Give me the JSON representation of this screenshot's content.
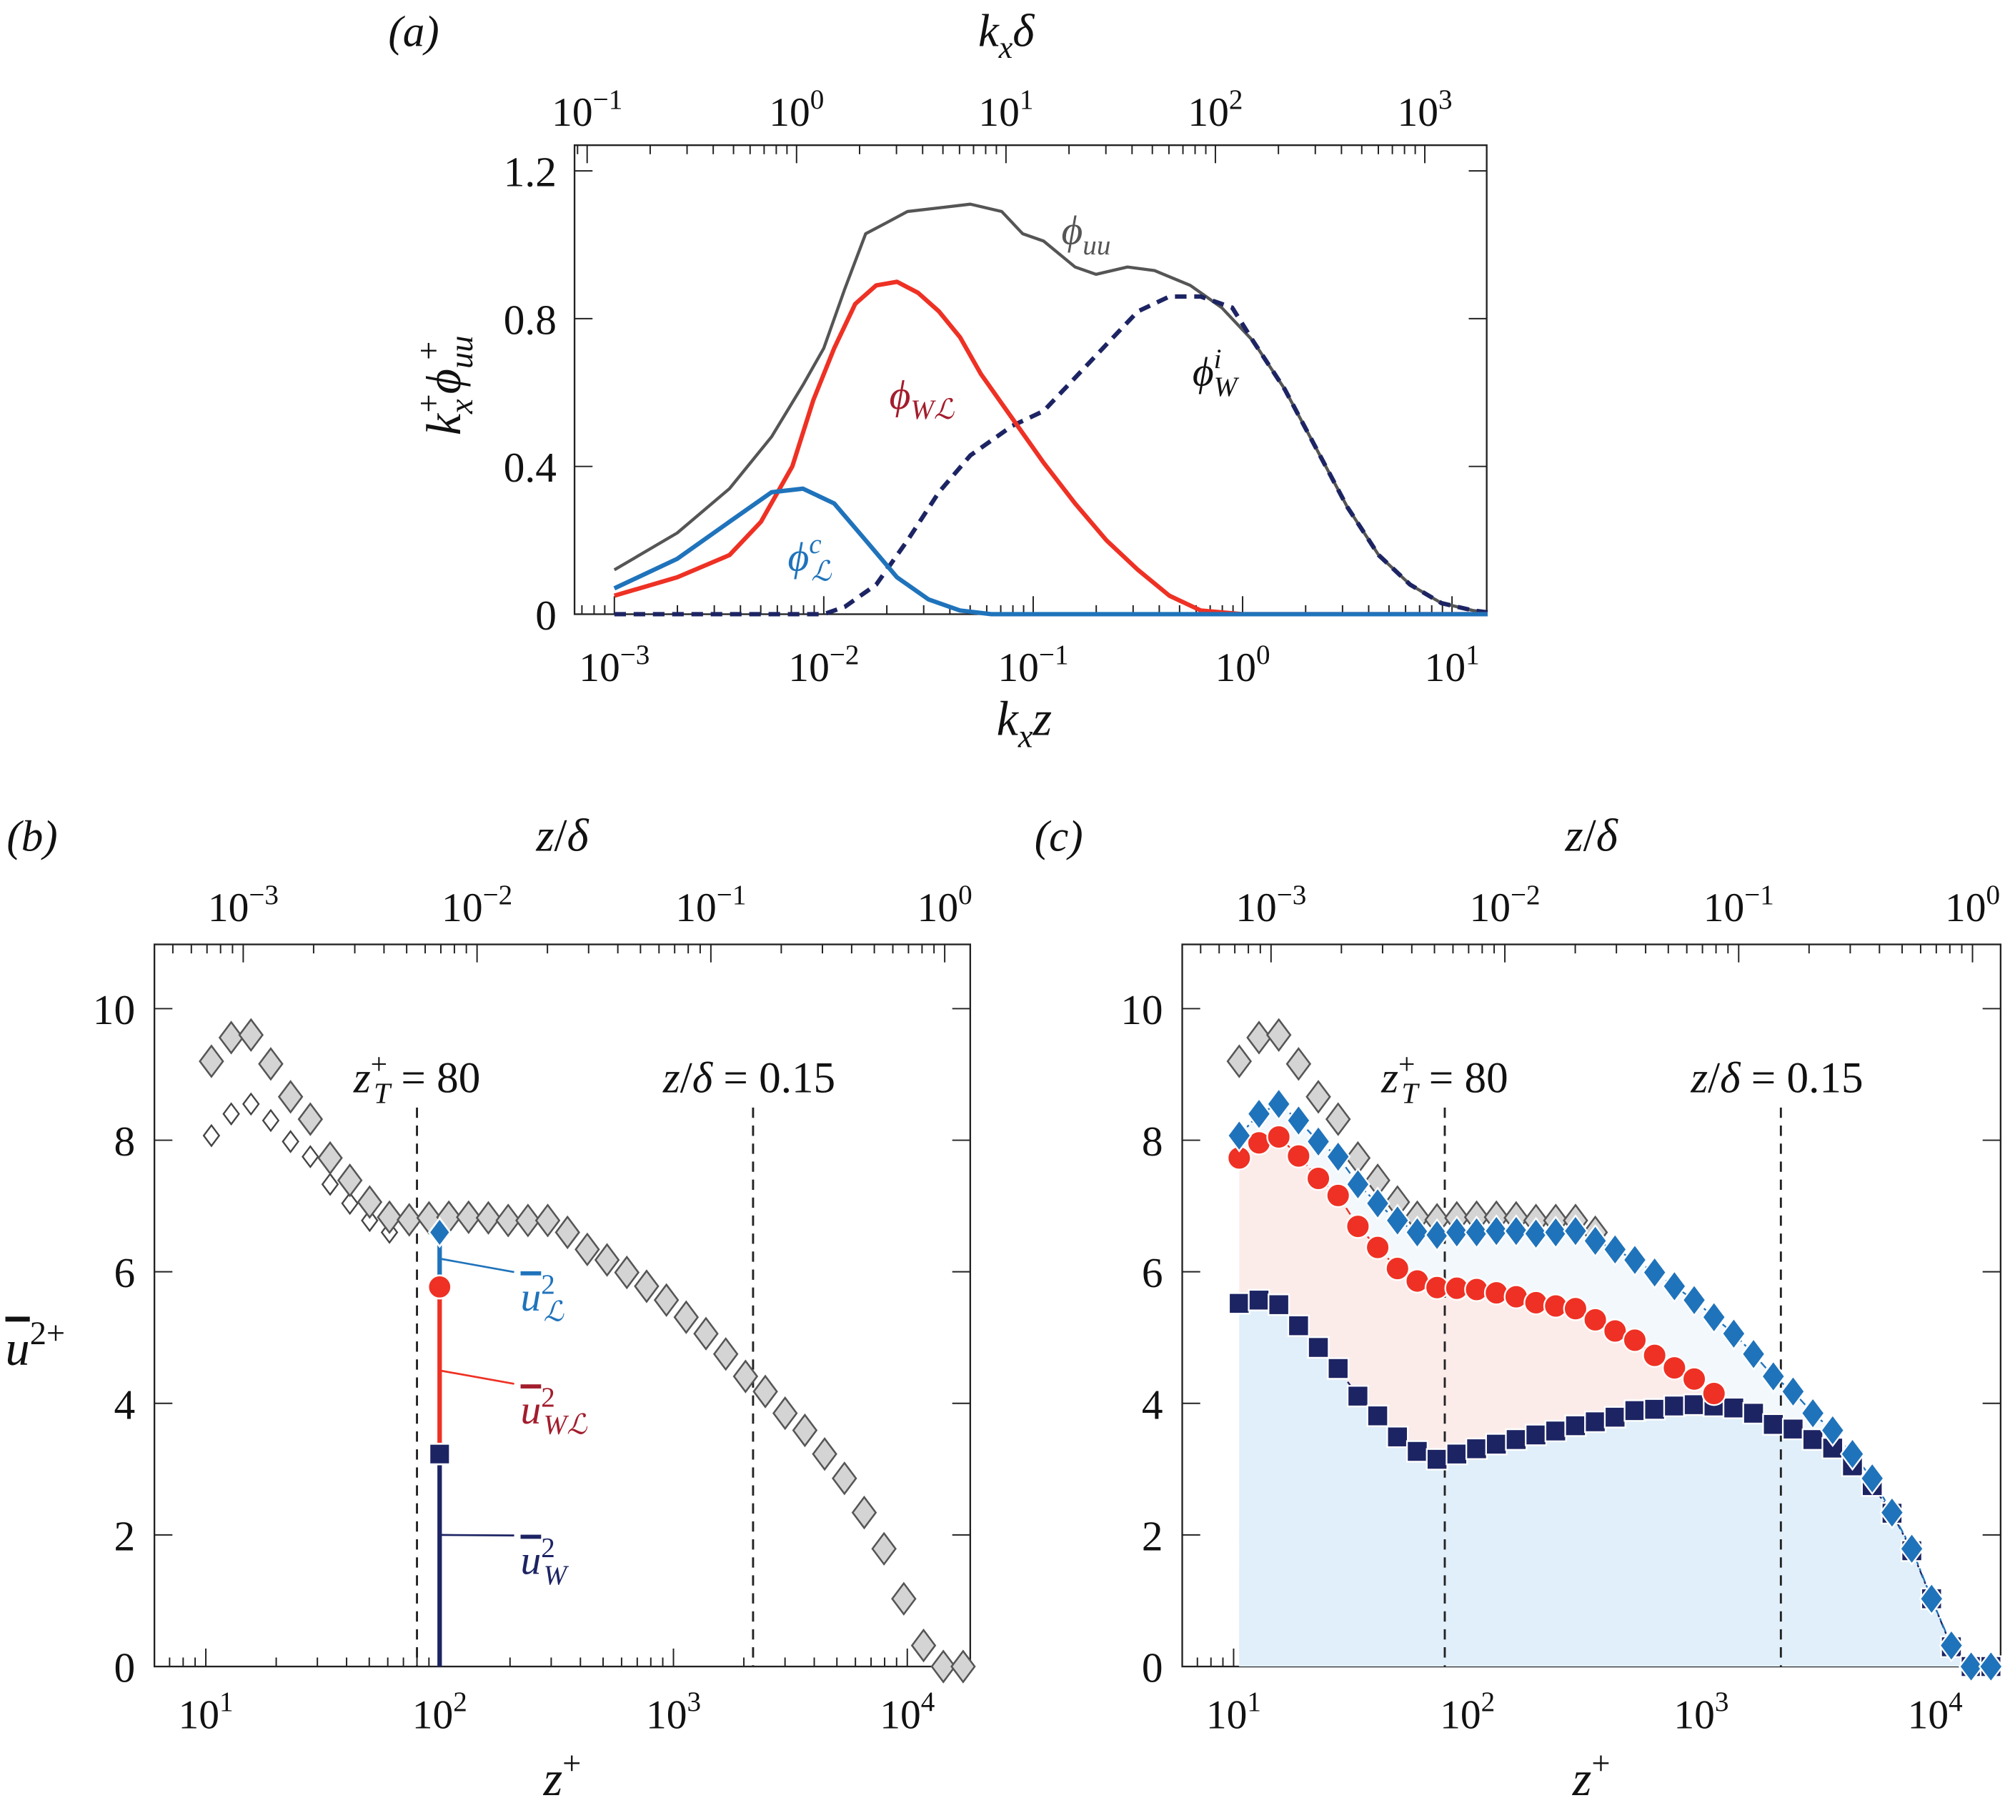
{
  "colors": {
    "uu": "#555555",
    "wl": "#ee3124",
    "wl_label": "#a31d2d",
    "lc": "#1f73bb",
    "w": "#1d2463",
    "grey_fill": "#d4d4d4",
    "grey_edge": "#555555",
    "fill_lightblue": "#e0eff9",
    "fill_pink": "#fbecea",
    "fill_paleblue": "#f3f8fd"
  },
  "chart_data": [
    {
      "panel": "(a)",
      "type": "line",
      "title_top": [
        {
          "t": "k",
          "i": 1
        },
        {
          "t": "x",
          "s": "sub",
          "i": 1
        },
        {
          "t": "δ",
          "i": 1
        }
      ],
      "xlabel": [
        {
          "t": "k",
          "i": 1
        },
        {
          "t": "x",
          "s": "sub",
          "i": 1
        },
        {
          "t": "z",
          "i": 1
        }
      ],
      "ylabel": [
        {
          "t": "k",
          "i": 1
        },
        {
          "t": "x",
          "s": "sub",
          "i": 1
        },
        {
          "t": "+",
          "s": "sup",
          "dx": -9
        },
        {
          "t": "ϕ",
          "i": 1
        },
        {
          "t": "uu",
          "s": "sub",
          "i": 1
        },
        {
          "t": "+",
          "s": "sup",
          "dx": -16
        }
      ],
      "xscale": "log",
      "xlim_log10": [
        -3.19,
        1.17
      ],
      "ylim": [
        0,
        1.26
      ],
      "xticks_exp": [
        "−3",
        "−2",
        "−1",
        "0",
        "1"
      ],
      "top_ticks_exp": [
        "−1",
        "0",
        "1",
        "2",
        "3"
      ],
      "tick_base": "10",
      "yticks": [
        {
          "v": 0,
          "label": "0"
        },
        {
          "v": 0.4,
          "label": "0.4"
        },
        {
          "v": 0.8,
          "label": "0.8"
        },
        {
          "v": 1.2,
          "label": "1.2"
        }
      ],
      "series": [
        {
          "name": "phi_uu",
          "label": [
            {
              "t": "ϕ",
              "i": 1
            },
            {
              "t": "uu",
              "s": "sub",
              "i": 1
            }
          ],
          "color_key": "uu",
          "style": "solid",
          "x_log10": [
            -3.0,
            -2.7,
            -2.45,
            -2.25,
            -2.1,
            -2.0,
            -1.9,
            -1.8,
            -1.7,
            -1.6,
            -1.45,
            -1.3,
            -1.15,
            -1.05,
            -0.95,
            -0.8,
            -0.7,
            -0.55,
            -0.42,
            -0.25,
            -0.1,
            0.05,
            0.2,
            0.35,
            0.5,
            0.65,
            0.8,
            0.95,
            1.1,
            1.17
          ],
          "y": [
            0.12,
            0.22,
            0.34,
            0.48,
            0.62,
            0.72,
            0.88,
            1.03,
            1.06,
            1.09,
            1.1,
            1.11,
            1.09,
            1.03,
            1.01,
            0.94,
            0.92,
            0.94,
            0.93,
            0.89,
            0.83,
            0.74,
            0.61,
            0.45,
            0.29,
            0.16,
            0.08,
            0.03,
            0.01,
            0.005
          ]
        },
        {
          "name": "phi_WL",
          "label": [
            {
              "t": "ϕ",
              "i": 1
            },
            {
              "t": "Wℒ",
              "s": "sub",
              "i": 1
            }
          ],
          "color_key": "wl",
          "style": "solid",
          "x_log10": [
            -3.0,
            -2.7,
            -2.45,
            -2.3,
            -2.15,
            -2.05,
            -1.95,
            -1.85,
            -1.75,
            -1.65,
            -1.55,
            -1.45,
            -1.35,
            -1.25,
            -1.1,
            -0.95,
            -0.8,
            -0.65,
            -0.5,
            -0.35,
            -0.2,
            0.0,
            1.17
          ],
          "y": [
            0.05,
            0.1,
            0.16,
            0.25,
            0.4,
            0.58,
            0.72,
            0.84,
            0.89,
            0.9,
            0.87,
            0.82,
            0.75,
            0.65,
            0.53,
            0.41,
            0.3,
            0.2,
            0.12,
            0.05,
            0.01,
            0.0,
            0.0
          ]
        },
        {
          "name": "phi_L_c",
          "label": [
            {
              "t": "ϕ",
              "i": 1
            },
            {
              "t": "c",
              "s": "sup",
              "i": 1
            },
            {
              "t": "ℒ",
              "s": "sub",
              "i": 1,
              "dx": -8
            }
          ],
          "color_key": "lc",
          "style": "solid",
          "x_log10": [
            -3.0,
            -2.7,
            -2.45,
            -2.25,
            -2.1,
            -1.95,
            -1.8,
            -1.65,
            -1.5,
            -1.35,
            -1.2,
            1.17
          ],
          "y": [
            0.07,
            0.15,
            0.25,
            0.33,
            0.34,
            0.3,
            0.2,
            0.1,
            0.04,
            0.01,
            0.0,
            0.0
          ]
        },
        {
          "name": "phi_W_i",
          "label": [
            {
              "t": "ϕ",
              "i": 1
            },
            {
              "t": "i",
              "s": "sup",
              "i": 1
            },
            {
              "t": "W",
              "s": "sub",
              "i": 1,
              "dx": -6
            }
          ],
          "color_key": "w",
          "style": "dashed",
          "x_log10": [
            -3.0,
            -2.0,
            -1.9,
            -1.75,
            -1.6,
            -1.45,
            -1.3,
            -1.1,
            -0.95,
            -0.8,
            -0.65,
            -0.5,
            -0.35,
            -0.2,
            -0.05,
            0.05,
            0.2,
            0.35,
            0.5,
            0.65,
            0.8,
            0.95,
            1.1,
            1.17
          ],
          "y": [
            0.0,
            0.0,
            0.02,
            0.08,
            0.2,
            0.33,
            0.43,
            0.51,
            0.55,
            0.64,
            0.73,
            0.82,
            0.86,
            0.86,
            0.83,
            0.74,
            0.61,
            0.45,
            0.29,
            0.16,
            0.08,
            0.03,
            0.01,
            0.005
          ]
        }
      ]
    },
    {
      "panel": "(b)",
      "type": "scatter",
      "title_top": [
        {
          "t": "z",
          "i": 1
        },
        {
          "t": "/"
        },
        {
          "t": "δ",
          "i": 1
        }
      ],
      "xlabel": [
        {
          "t": "z",
          "i": 1
        },
        {
          "t": "+",
          "s": "sup"
        }
      ],
      "ylabel": [
        {
          "t": "u",
          "i": 1,
          "over": 1
        },
        {
          "t": "2",
          "s": "sup"
        },
        {
          "t": "+",
          "s": "sup"
        }
      ],
      "xscale": "log",
      "xlim_log10": [
        0.78,
        4.27
      ],
      "ylim": [
        0,
        11
      ],
      "xticks_exp": [
        "1",
        "2",
        "3",
        "4"
      ],
      "top_ticks_exp": [
        "−3",
        "−2",
        "−1",
        "0"
      ],
      "tick_base": "10",
      "yticks": [
        {
          "v": 0,
          "label": "0"
        },
        {
          "v": 2,
          "label": "2"
        },
        {
          "v": 4,
          "label": "4"
        },
        {
          "v": 6,
          "label": "6"
        },
        {
          "v": 8,
          "label": "8"
        },
        {
          "v": 10,
          "label": "10"
        }
      ],
      "annotations": [
        {
          "text": [
            {
              "t": "z",
              "i": 1
            },
            {
              "t": "+",
              "s": "sup"
            },
            {
              "t": "T",
              "s": "sub",
              "i": 1,
              "dx": -10
            },
            {
              "t": " = 80"
            }
          ],
          "vline_zplus": 80
        },
        {
          "text": [
            {
              "t": "z",
              "i": 1
            },
            {
              "t": "/"
            },
            {
              "t": "δ",
              "i": 1
            },
            {
              "t": " = 0.15"
            }
          ],
          "vline_zplus": 2190
        }
      ],
      "decomposition_at_zplus": 100,
      "decomposition": [
        {
          "name": "u2_L",
          "value": 6.6,
          "label": [
            {
              "t": "u",
              "i": 1,
              "over": 1
            },
            {
              "t": "2",
              "s": "sup"
            },
            {
              "t": "ℒ",
              "s": "sub",
              "i": 1,
              "dx": -9
            }
          ],
          "color_key": "lc"
        },
        {
          "name": "u2_WL",
          "value": 5.77,
          "label": [
            {
              "t": "u",
              "i": 1,
              "over": 1
            },
            {
              "t": "2",
              "s": "sup"
            },
            {
              "t": "Wℒ",
              "s": "sub",
              "i": 1,
              "dx": -9
            }
          ],
          "color_key": "wl_label"
        },
        {
          "name": "u2_W",
          "value": 3.23,
          "label": [
            {
              "t": "u",
              "i": 1,
              "over": 1
            },
            {
              "t": "2",
              "s": "sup"
            },
            {
              "t": "W",
              "s": "sub",
              "i": 1,
              "dx": -9
            }
          ],
          "color_key": "w"
        }
      ]
    },
    {
      "panel": "(c)",
      "type": "scatter",
      "title_top": [
        {
          "t": "z",
          "i": 1
        },
        {
          "t": "/"
        },
        {
          "t": "δ",
          "i": 1
        }
      ],
      "xlabel": [
        {
          "t": "z",
          "i": 1
        },
        {
          "t": "+",
          "s": "sup"
        }
      ],
      "xscale": "log",
      "xlim_log10": [
        0.78,
        4.27
      ],
      "ylim": [
        0,
        11
      ],
      "xticks_exp": [
        "1",
        "2",
        "3",
        "4"
      ],
      "top_ticks_exp": [
        "−3",
        "−2",
        "−1",
        "0"
      ],
      "tick_base": "10",
      "yticks": [
        {
          "v": 0,
          "label": "0"
        },
        {
          "v": 2,
          "label": "2"
        },
        {
          "v": 4,
          "label": "4"
        },
        {
          "v": 6,
          "label": "6"
        },
        {
          "v": 8,
          "label": "8"
        },
        {
          "v": 10,
          "label": "10"
        }
      ],
      "annotations": [
        {
          "text": [
            {
              "t": "z",
              "i": 1
            },
            {
              "t": "+",
              "s": "sup"
            },
            {
              "t": "T",
              "s": "sub",
              "i": 1,
              "dx": -10
            },
            {
              "t": " = 80"
            }
          ],
          "vline_zplus": 80
        },
        {
          "text": [
            {
              "t": "z",
              "i": 1
            },
            {
              "t": "/"
            },
            {
              "t": "δ",
              "i": 1
            },
            {
              "t": " = 0.15"
            }
          ],
          "vline_zplus": 2190
        }
      ]
    }
  ],
  "profiles": {
    "x_log10_start": 1.024,
    "x_log10_step": 0.0846,
    "total_uu": [
      9.2,
      9.56,
      9.6,
      9.16,
      8.66,
      8.32,
      7.73,
      7.39,
      7.06,
      6.83,
      6.79,
      6.82,
      6.83,
      6.83,
      6.82,
      6.78,
      6.78,
      6.78,
      6.6,
      6.34,
      6.18,
      5.99,
      5.78,
      5.57,
      5.31,
      5.06,
      4.75,
      4.41,
      4.18,
      3.85,
      3.59,
      3.23,
      2.86,
      2.34,
      1.79,
      1.03,
      0.32,
      0,
      0
    ],
    "u2_L": [
      8.07,
      8.4,
      8.55,
      8.3,
      7.98,
      7.75,
      7.33,
      7.04,
      6.78,
      6.6,
      6.56,
      6.6,
      6.6,
      6.62,
      6.62,
      6.58,
      6.6,
      6.62,
      6.47,
      6.34,
      6.18,
      5.99,
      5.78,
      5.57,
      5.31,
      5.06,
      4.75,
      4.41,
      4.18,
      3.85,
      3.59,
      3.23,
      2.86,
      2.34,
      1.79,
      1.03,
      0.32,
      0,
      0
    ],
    "u2_WL": [
      7.73,
      7.96,
      8.05,
      7.76,
      7.42,
      7.16,
      6.69,
      6.37,
      6.05,
      5.86,
      5.76,
      5.75,
      5.73,
      5.68,
      5.62,
      5.53,
      5.48,
      5.44,
      5.27,
      5.1,
      4.96,
      4.73,
      4.54,
      4.37,
      4.15
    ],
    "u2_W": [
      5.52,
      5.57,
      5.5,
      5.18,
      4.85,
      4.53,
      4.11,
      3.81,
      3.49,
      3.27,
      3.15,
      3.23,
      3.31,
      3.38,
      3.45,
      3.52,
      3.58,
      3.66,
      3.72,
      3.79,
      3.89,
      3.91,
      3.96,
      3.98,
      3.96,
      3.93,
      3.85,
      3.68,
      3.61,
      3.45,
      3.32,
      3.05,
      2.75,
      2.33,
      1.76,
      1.03,
      0.3,
      0,
      0
    ],
    "open_diamonds_count": 10
  }
}
